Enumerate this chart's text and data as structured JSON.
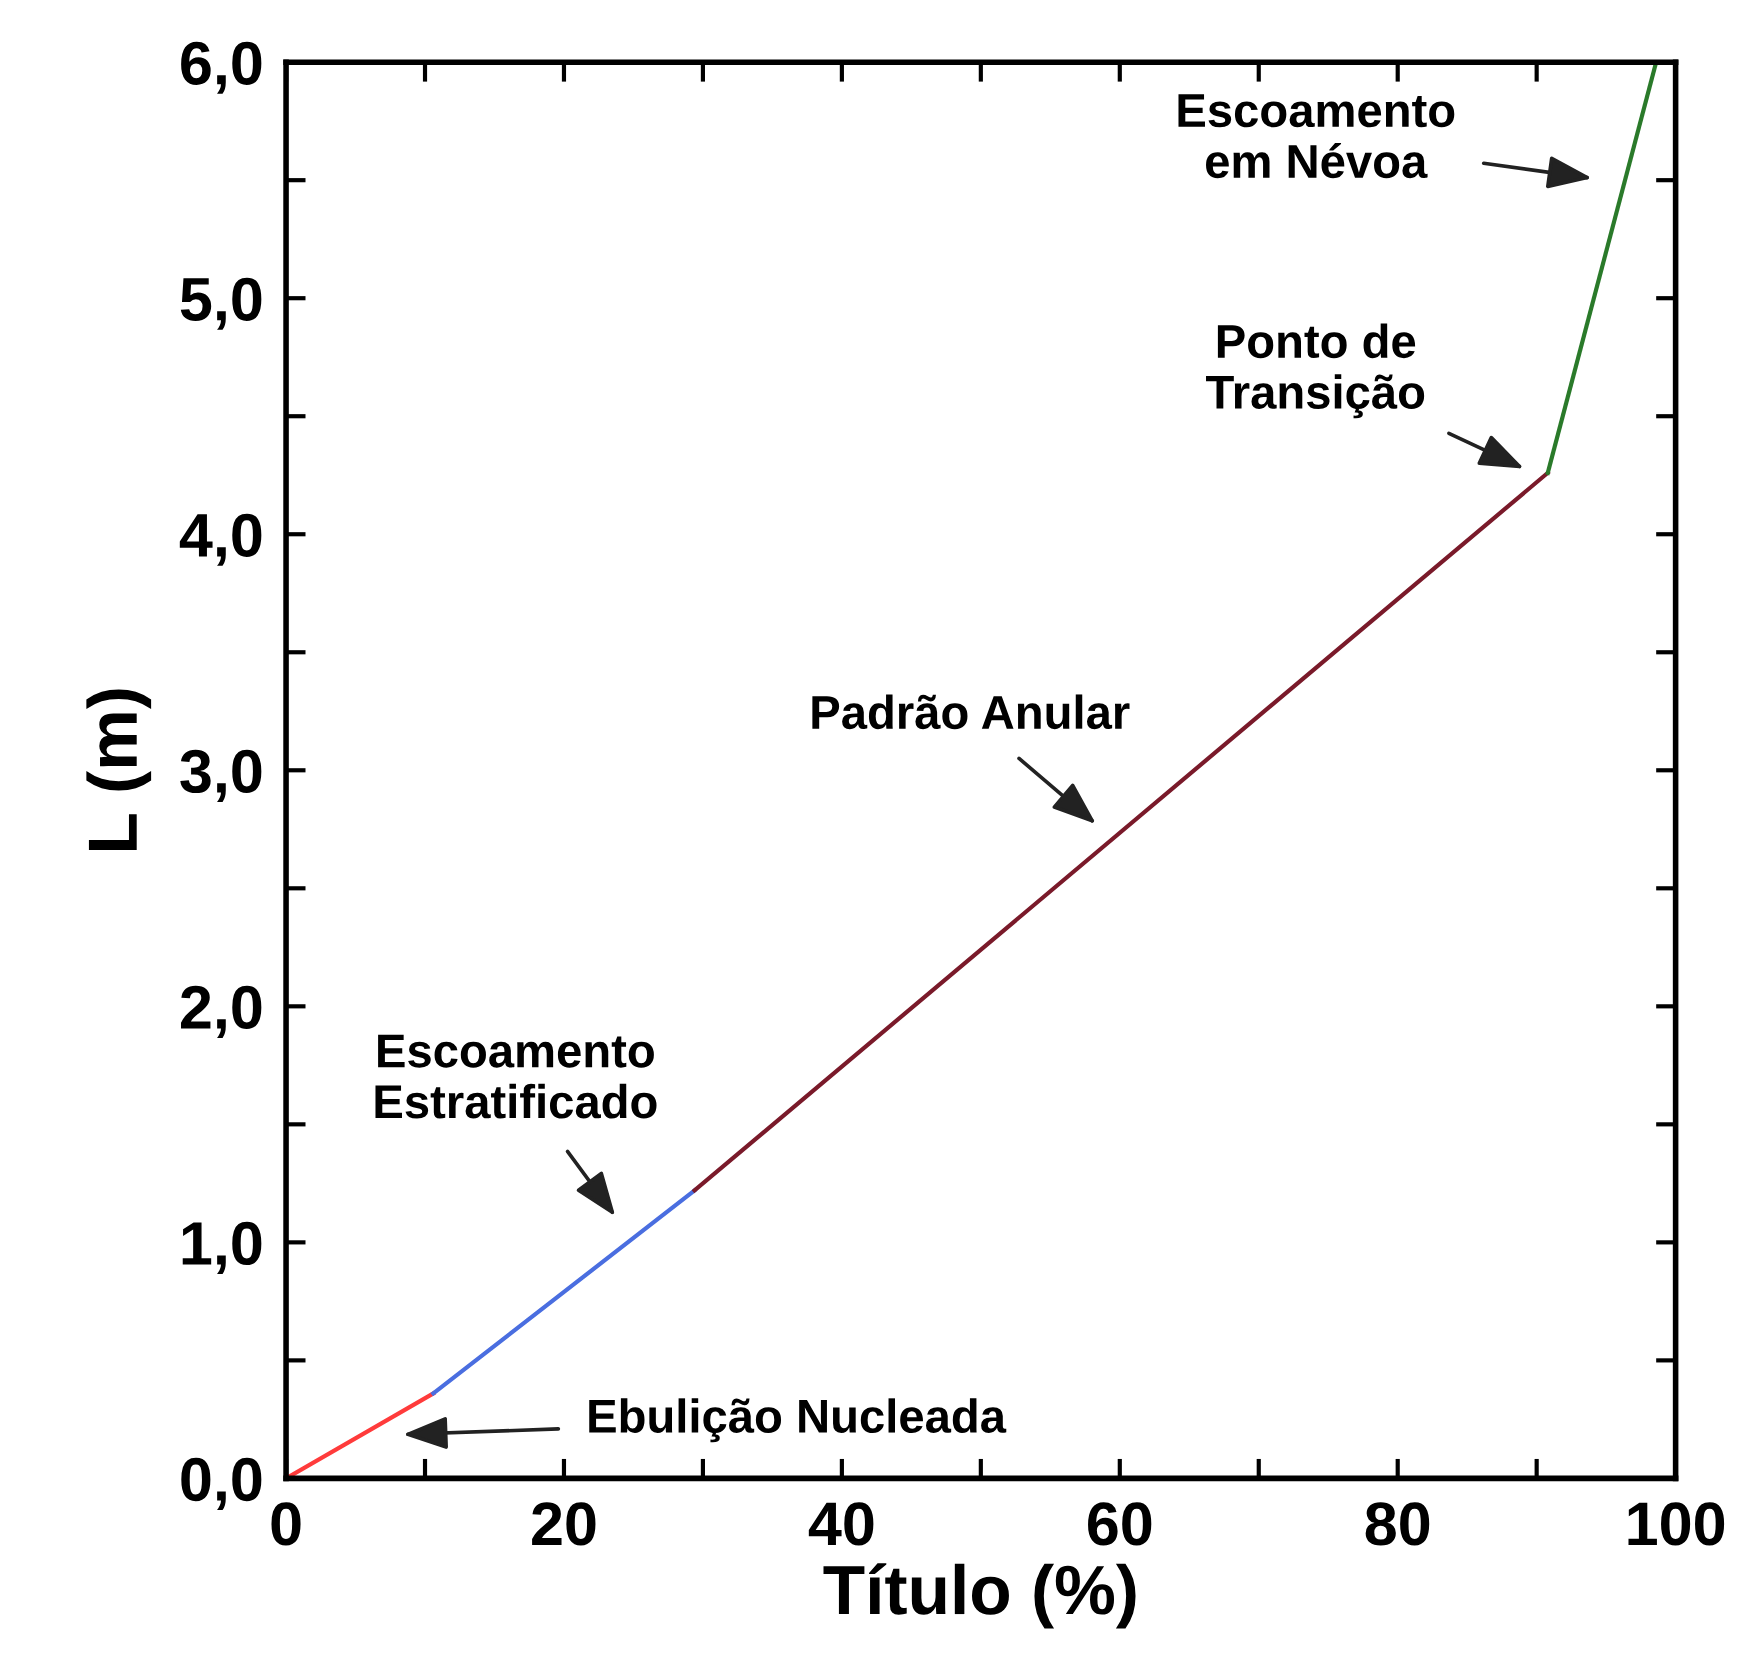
{
  "chart_data": {
    "type": "line",
    "xlabel": "Título (%)",
    "ylabel": "L (m)",
    "xlim": [
      0,
      100
    ],
    "ylim": [
      0,
      6
    ],
    "xticks": [
      0,
      {
        "value": 10,
        "label": null
      },
      20,
      {
        "value": 30,
        "label": null
      },
      40,
      {
        "value": 50,
        "label": null
      },
      60,
      {
        "value": 70,
        "label": null
      },
      80,
      {
        "value": 90,
        "label": null
      },
      100
    ],
    "yticks": [
      {
        "value": 0,
        "label": "0,0"
      },
      {
        "value": 0.5,
        "label": null
      },
      {
        "value": 1,
        "label": "1,0"
      },
      {
        "value": 1.5,
        "label": null
      },
      {
        "value": 2,
        "label": "2,0"
      },
      {
        "value": 2.5,
        "label": null
      },
      {
        "value": 3,
        "label": "3,0"
      },
      {
        "value": 3.5,
        "label": null
      },
      {
        "value": 4,
        "label": "4,0"
      },
      {
        "value": 4.5,
        "label": null
      },
      {
        "value": 5,
        "label": "5,0"
      },
      {
        "value": 5.5,
        "label": null
      },
      {
        "value": 6,
        "label": "6,0"
      }
    ],
    "grid": false,
    "legend": false,
    "marker": "none",
    "line_style": "solid",
    "series": [
      {
        "color": "#ff3b3b",
        "x": [
          0,
          10.6
        ],
        "values": [
          0,
          0.36
        ]
      },
      {
        "color": "#4a6ee0",
        "x": [
          10.6,
          29.4
        ],
        "values": [
          0.36,
          1.22
        ]
      },
      {
        "color": "#7a1a2a",
        "x": [
          29.4,
          90.8
        ],
        "values": [
          1.22,
          4.26
        ]
      },
      {
        "color": "#2a7a2a",
        "x": [
          90.8,
          98.6
        ],
        "values": [
          4.26,
          6.0
        ]
      }
    ],
    "annotations": [
      "Ebulição Nucleada",
      "Escoamento\nEstratificado",
      "Padrão Anular",
      "Ponto de\nTransição",
      "Escoamento\nem Névoa"
    ]
  }
}
